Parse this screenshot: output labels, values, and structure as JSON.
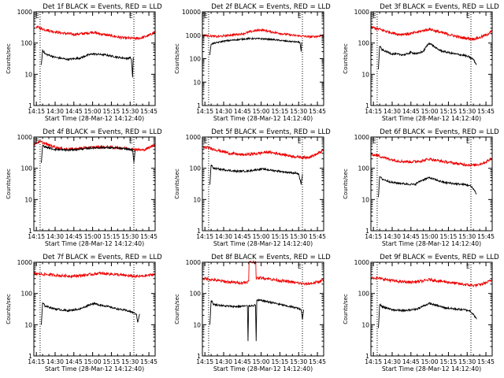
{
  "figure": {
    "y_axis_label": "Counts/sec",
    "colors": {
      "events": "#000000",
      "lld": "#ee0000",
      "axes": "#000000",
      "background": "#ffffff"
    }
  },
  "chart_data": [
    {
      "type": "line",
      "title": "Det 1f BLACK = Events, RED = LLD",
      "xlabel": "Start Time (28-Mar-12 14:12:40)",
      "ylabel": "Counts/sec",
      "x_tick_labels": [
        "14:15",
        "14:30",
        "14:45",
        "15:00",
        "15:15",
        "15:30",
        "15:45"
      ],
      "x_ticks_min": [
        15,
        30,
        45,
        60,
        75,
        90,
        105
      ],
      "xlim_min": [
        13,
        110
      ],
      "y_scale": "log",
      "ylim": [
        1,
        1000
      ],
      "y_tick_labels": [
        "1",
        "10",
        "100",
        "1000"
      ],
      "y_tick_values": [
        1,
        10,
        100,
        1000
      ],
      "markers": [
        {
          "x_min": 18,
          "label": "E"
        },
        {
          "x_min": 93,
          "label": "E"
        }
      ],
      "dotted_lines_min": [
        18,
        93
      ],
      "series": [
        {
          "name": "LLD",
          "color": "red",
          "x_min": [
            15,
            18,
            25,
            35,
            45,
            55,
            60,
            65,
            75,
            85,
            95,
            100,
            105,
            110
          ],
          "values": [
            330,
            300,
            250,
            210,
            190,
            205,
            225,
            200,
            170,
            145,
            140,
            150,
            175,
            230
          ]
        },
        {
          "name": "Events",
          "color": "black",
          "x_min": [
            19,
            20,
            22,
            30,
            40,
            50,
            55,
            60,
            70,
            80,
            88,
            90,
            91,
            92,
            92.5
          ],
          "values": [
            20,
            60,
            45,
            35,
            30,
            33,
            40,
            45,
            42,
            35,
            32,
            35,
            30,
            8,
            35
          ]
        }
      ]
    },
    {
      "type": "line",
      "title": "Det 2f BLACK = Events, RED = LLD",
      "xlabel": "Start Time (28-Mar-12 14:12:40)",
      "ylabel": "Counts/sec",
      "x_tick_labels": [
        "14:15",
        "14:30",
        "14:45",
        "15:00",
        "15:15",
        "15:30",
        "15:45"
      ],
      "x_ticks_min": [
        15,
        30,
        45,
        60,
        75,
        90,
        105
      ],
      "xlim_min": [
        13,
        110
      ],
      "y_scale": "log",
      "ylim": [
        1,
        10000
      ],
      "y_tick_labels": [
        "1",
        "10",
        "100",
        "1000",
        "10000"
      ],
      "y_tick_values": [
        1,
        10,
        100,
        1000,
        10000
      ],
      "markers": [
        {
          "x_min": 18,
          "label": "E"
        },
        {
          "x_min": 93,
          "label": "E"
        }
      ],
      "dotted_lines_min": [
        18,
        93
      ],
      "series": [
        {
          "name": "LLD",
          "color": "red",
          "x_min": [
            13,
            18,
            25,
            35,
            45,
            50,
            55,
            60,
            65,
            75,
            85,
            95,
            100,
            105,
            110
          ],
          "values": [
            1000,
            950,
            870,
            1000,
            1150,
            1350,
            1550,
            1700,
            1500,
            1200,
            1000,
            900,
            850,
            900,
            1000
          ]
        },
        {
          "name": "Events",
          "color": "black",
          "x_min": [
            19,
            20,
            22,
            30,
            40,
            50,
            60,
            70,
            80,
            90,
            91,
            92,
            92.5
          ],
          "values": [
            150,
            430,
            450,
            560,
            640,
            720,
            710,
            650,
            560,
            510,
            500,
            200,
            500
          ]
        }
      ]
    },
    {
      "type": "line",
      "title": "Det 3f BLACK = Events, RED = LLD",
      "xlabel": "Start Time (28-Mar-12 14:12:40)",
      "ylabel": "Counts/sec",
      "x_tick_labels": [
        "14:15",
        "14:30",
        "14:45",
        "15:00",
        "15:15",
        "15:30",
        "15:45"
      ],
      "x_ticks_min": [
        15,
        30,
        45,
        60,
        75,
        90,
        105
      ],
      "xlim_min": [
        13,
        110
      ],
      "y_scale": "log",
      "ylim": [
        1,
        1000
      ],
      "y_tick_labels": [
        "1",
        "10",
        "100",
        "1000"
      ],
      "y_tick_values": [
        1,
        10,
        100,
        1000
      ],
      "markers": [
        {
          "x_min": 18,
          "label": "E"
        },
        {
          "x_min": 93,
          "label": "E"
        }
      ],
      "dotted_lines_min": [
        18,
        93
      ],
      "series": [
        {
          "name": "LLD",
          "color": "red",
          "x_min": [
            13,
            18,
            25,
            35,
            45,
            55,
            60,
            65,
            75,
            85,
            95,
            100,
            105,
            110
          ],
          "values": [
            320,
            290,
            240,
            190,
            200,
            250,
            280,
            240,
            190,
            150,
            135,
            150,
            180,
            240
          ]
        },
        {
          "name": "Events",
          "color": "black",
          "x_min": [
            19,
            20,
            22,
            30,
            40,
            45,
            50,
            55,
            58,
            60,
            63,
            66,
            70,
            80,
            88,
            92,
            95,
            97.5
          ],
          "values": [
            15,
            80,
            60,
            45,
            42,
            50,
            45,
            55,
            85,
            100,
            80,
            65,
            55,
            45,
            40,
            35,
            30,
            20
          ]
        }
      ]
    },
    {
      "type": "line",
      "title": "Det 4f BLACK = Events, RED = LLD",
      "xlabel": "Start Time (28-Mar-12 14:12:40)",
      "ylabel": "Counts/sec",
      "x_tick_labels": [
        "14:15",
        "14:30",
        "14:45",
        "15:00",
        "15:15",
        "15:30",
        "15:45"
      ],
      "x_ticks_min": [
        15,
        30,
        45,
        60,
        75,
        90,
        105
      ],
      "xlim_min": [
        13,
        110
      ],
      "y_scale": "log",
      "ylim": [
        1,
        1000
      ],
      "y_tick_labels": [
        "1",
        "10",
        "100",
        "1000"
      ],
      "y_tick_values": [
        1,
        10,
        100,
        1000
      ],
      "markers": [
        {
          "x_min": 18,
          "label": "E"
        },
        {
          "x_min": 93,
          "label": "E"
        }
      ],
      "dotted_lines_min": [
        18,
        93
      ],
      "series": [
        {
          "name": "LLD",
          "color": "red",
          "x_min": [
            13,
            18,
            25,
            35,
            45,
            55,
            65,
            75,
            85,
            95,
            100,
            105,
            110
          ],
          "values": [
            600,
            720,
            550,
            420,
            410,
            450,
            480,
            470,
            440,
            400,
            380,
            450,
            600
          ]
        },
        {
          "name": "Events",
          "color": "black",
          "x_min": [
            19,
            20,
            22,
            30,
            40,
            50,
            60,
            70,
            80,
            90,
            92,
            93,
            94
          ],
          "values": [
            150,
            550,
            480,
            400,
            380,
            410,
            450,
            460,
            440,
            400,
            380,
            150,
            380
          ]
        }
      ]
    },
    {
      "type": "line",
      "title": "Det 5f BLACK = Events, RED = LLD",
      "xlabel": "Start Time (28-Mar-12 14:12:40)",
      "ylabel": "Counts/sec",
      "x_tick_labels": [
        "14:15",
        "14:30",
        "14:45",
        "15:00",
        "15:15",
        "15:30",
        "15:45"
      ],
      "x_ticks_min": [
        15,
        30,
        45,
        60,
        75,
        90,
        105
      ],
      "xlim_min": [
        13,
        110
      ],
      "y_scale": "log",
      "ylim": [
        1,
        1000
      ],
      "y_tick_labels": [
        "1",
        "10",
        "100",
        "1000"
      ],
      "y_tick_values": [
        1,
        10,
        100,
        1000
      ],
      "markers": [
        {
          "x_min": 18,
          "label": "E"
        },
        {
          "x_min": 93,
          "label": "E"
        }
      ],
      "dotted_lines_min": [
        18,
        93
      ],
      "series": [
        {
          "name": "LLD",
          "color": "red",
          "x_min": [
            13,
            18,
            25,
            35,
            45,
            55,
            65,
            75,
            85,
            95,
            100,
            105,
            110
          ],
          "values": [
            470,
            450,
            380,
            300,
            270,
            290,
            330,
            290,
            240,
            220,
            240,
            290,
            380
          ]
        },
        {
          "name": "Events",
          "color": "black",
          "x_min": [
            19,
            20,
            22,
            30,
            40,
            50,
            60,
            70,
            80,
            88,
            90,
            92,
            93
          ],
          "values": [
            30,
            130,
            100,
            90,
            80,
            82,
            95,
            85,
            75,
            70,
            65,
            30,
            65
          ]
        }
      ]
    },
    {
      "type": "line",
      "title": "Det 6f BLACK = Events, RED = LLD",
      "xlabel": "Start Time (28-Mar-12 14:12:40)",
      "ylabel": "Counts/sec",
      "x_tick_labels": [
        "14:15",
        "14:30",
        "14:45",
        "15:00",
        "15:15",
        "15:30",
        "15:45"
      ],
      "x_ticks_min": [
        15,
        30,
        45,
        60,
        75,
        90,
        105
      ],
      "xlim_min": [
        13,
        110
      ],
      "y_scale": "log",
      "ylim": [
        1,
        1000
      ],
      "y_tick_labels": [
        "1",
        "10",
        "100",
        "1000"
      ],
      "y_tick_values": [
        1,
        10,
        100,
        1000
      ],
      "markers": [
        {
          "x_min": 18,
          "label": "E"
        },
        {
          "x_min": 93,
          "label": "E"
        }
      ],
      "dotted_lines_min": [
        18,
        93
      ],
      "series": [
        {
          "name": "LLD",
          "color": "red",
          "x_min": [
            13,
            18,
            25,
            35,
            45,
            55,
            60,
            65,
            75,
            85,
            95,
            100,
            105,
            110
          ],
          "values": [
            280,
            260,
            210,
            170,
            160,
            175,
            200,
            180,
            155,
            135,
            125,
            135,
            160,
            210
          ]
        },
        {
          "name": "Events",
          "color": "black",
          "x_min": [
            19,
            20,
            22,
            30,
            40,
            48,
            52,
            56,
            60,
            65,
            72,
            80,
            88,
            92,
            95,
            97.5
          ],
          "values": [
            12,
            55,
            45,
            35,
            32,
            30,
            38,
            45,
            50,
            42,
            35,
            32,
            30,
            28,
            22,
            15
          ]
        }
      ]
    },
    {
      "type": "line",
      "title": "Det 7f BLACK = Events, RED = LLD",
      "xlabel": "Start Time (28-Mar-12 14:12:40)",
      "ylabel": "Counts/sec",
      "x_tick_labels": [
        "14:15",
        "14:30",
        "14:45",
        "15:00",
        "15:15",
        "15:30",
        "15:45"
      ],
      "x_ticks_min": [
        15,
        30,
        45,
        60,
        75,
        90,
        105
      ],
      "xlim_min": [
        13,
        110
      ],
      "y_scale": "log",
      "ylim": [
        1,
        1000
      ],
      "y_tick_labels": [
        "1",
        "10",
        "100",
        "1000"
      ],
      "y_tick_values": [
        1,
        10,
        100,
        1000
      ],
      "markers": [],
      "dotted_lines_min": [
        18,
        93
      ],
      "series": [
        {
          "name": "LLD",
          "color": "red",
          "x_min": [
            13,
            18,
            25,
            35,
            45,
            55,
            65,
            75,
            85,
            95,
            100,
            105,
            110
          ],
          "values": [
            430,
            420,
            400,
            370,
            360,
            390,
            440,
            420,
            380,
            350,
            360,
            380,
            420
          ]
        },
        {
          "name": "Events",
          "color": "black",
          "x_min": [
            19,
            20,
            22,
            30,
            40,
            50,
            60,
            70,
            80,
            88,
            92,
            95,
            96,
            97.5
          ],
          "values": [
            10,
            50,
            40,
            32,
            28,
            32,
            48,
            40,
            32,
            28,
            25,
            22,
            12,
            22
          ]
        }
      ]
    },
    {
      "type": "line",
      "title": "Det 8f BLACK = Events, RED = LLD",
      "xlabel": "Start Time (28-Mar-12 14:12:40)",
      "ylabel": "Counts/sec",
      "x_tick_labels": [
        "14:15",
        "14:30",
        "14:45",
        "15:00",
        "15:15",
        "15:30",
        "15:45"
      ],
      "x_ticks_min": [
        15,
        30,
        45,
        60,
        75,
        90,
        105
      ],
      "xlim_min": [
        13,
        110
      ],
      "y_scale": "log",
      "ylim": [
        1,
        1000
      ],
      "y_tick_labels": [
        "1",
        "10",
        "100",
        "1000"
      ],
      "y_tick_values": [
        1,
        10,
        100,
        1000
      ],
      "markers": [
        {
          "x_min": 93,
          "label": "E"
        }
      ],
      "dotted_lines_min": [
        18,
        93
      ],
      "series": [
        {
          "name": "LLD",
          "color": "red",
          "x_min": [
            13,
            18,
            25,
            35,
            45,
            50,
            50.3,
            55.7,
            56,
            60,
            65,
            75,
            85,
            95,
            100,
            105,
            110
          ],
          "values": [
            300,
            290,
            260,
            230,
            220,
            240,
            1000,
            1000,
            300,
            320,
            300,
            260,
            230,
            200,
            210,
            230,
            270
          ]
        },
        {
          "name": "Events",
          "color": "black",
          "x_min": [
            19,
            20,
            22,
            30,
            40,
            49,
            49.5,
            50,
            55.5,
            56,
            56.5,
            60,
            70,
            80,
            88,
            92,
            93,
            94
          ],
          "values": [
            10,
            60,
            45,
            40,
            38,
            40,
            3,
            40,
            42,
            3,
            60,
            60,
            50,
            40,
            35,
            30,
            15,
            30
          ]
        }
      ]
    },
    {
      "type": "line",
      "title": "Det 9f BLACK = Events, RED = LLD",
      "xlabel": "Start Time (28-Mar-12 14:12:40)",
      "ylabel": "Counts/sec",
      "x_tick_labels": [
        "14:15",
        "14:30",
        "14:45",
        "15:00",
        "15:15",
        "15:30",
        "15:45"
      ],
      "x_ticks_min": [
        15,
        30,
        45,
        60,
        75,
        90,
        105
      ],
      "xlim_min": [
        13,
        110
      ],
      "y_scale": "log",
      "ylim": [
        1,
        1000
      ],
      "y_tick_labels": [
        "1",
        "10",
        "100",
        "1000"
      ],
      "y_tick_values": [
        1,
        10,
        100,
        1000
      ],
      "markers": [
        {
          "x_min": 93,
          "label": "E"
        }
      ],
      "dotted_lines_min": [
        18,
        93
      ],
      "series": [
        {
          "name": "LLD",
          "color": "red",
          "x_min": [
            13,
            18,
            25,
            35,
            45,
            55,
            60,
            65,
            75,
            85,
            95,
            100,
            105,
            110
          ],
          "values": [
            330,
            310,
            280,
            240,
            230,
            250,
            280,
            260,
            230,
            200,
            180,
            190,
            220,
            270
          ]
        },
        {
          "name": "Events",
          "color": "black",
          "x_min": [
            19,
            20,
            22,
            30,
            40,
            50,
            55,
            60,
            65,
            72,
            80,
            88,
            92,
            95,
            97.5
          ],
          "values": [
            8,
            45,
            38,
            30,
            28,
            32,
            40,
            48,
            42,
            35,
            32,
            30,
            28,
            22,
            15
          ]
        }
      ]
    }
  ]
}
